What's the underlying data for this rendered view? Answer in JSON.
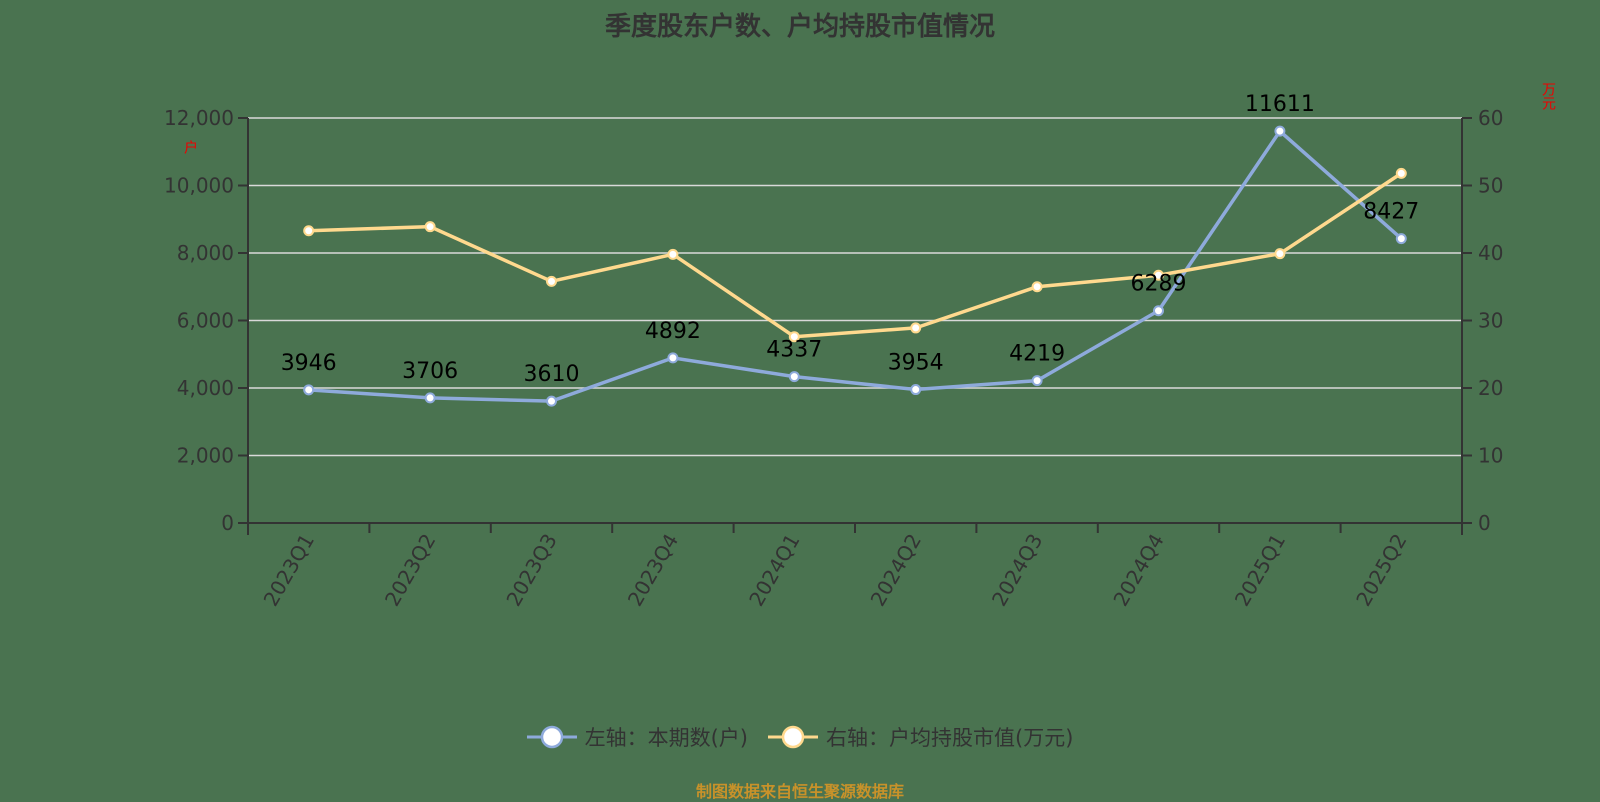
{
  "chart_data": {
    "type": "line",
    "title": "季度股东户数、户均持股市值情况",
    "categories": [
      "2023Q1",
      "2023Q2",
      "2023Q3",
      "2023Q4",
      "2024Q1",
      "2024Q2",
      "2024Q3",
      "2024Q4",
      "2025Q1",
      "2025Q2"
    ],
    "series": [
      {
        "name": "左轴：本期数(户)",
        "axis": "left",
        "color": "#8eaadb",
        "values": [
          3946,
          3706,
          3610,
          4892,
          4337,
          3954,
          4219,
          6289,
          11611,
          8427
        ],
        "data_labels": true
      },
      {
        "name": "右轴：户均持股市值(万元)",
        "axis": "right",
        "color": "#ffd98e",
        "values": [
          43.3,
          43.9,
          35.8,
          39.8,
          27.6,
          28.9,
          35.0,
          36.7,
          39.9,
          51.8
        ],
        "data_labels": false
      }
    ],
    "left_axis": {
      "ylim": [
        0,
        12000
      ],
      "ticks": [
        "0",
        "2,000",
        "4,000",
        "6,000",
        "8,000",
        "10,000",
        "12,000"
      ],
      "unit_label": "户"
    },
    "right_axis": {
      "ylim": [
        0,
        60
      ],
      "ticks": [
        "0",
        "10",
        "20",
        "30",
        "40",
        "50",
        "60"
      ],
      "unit_label": "万元"
    },
    "xlabel": "",
    "grid": true,
    "legend_position": "bottom"
  },
  "footer": "制图数据来自恒生聚源数据库",
  "colors": {
    "background": "#4a7350",
    "grid": "#d9d9d9",
    "axis": "#333333",
    "left_series": "#8eaadb",
    "right_series": "#ffd98e",
    "footer": "#c8922a",
    "unit": "#ee0000"
  }
}
